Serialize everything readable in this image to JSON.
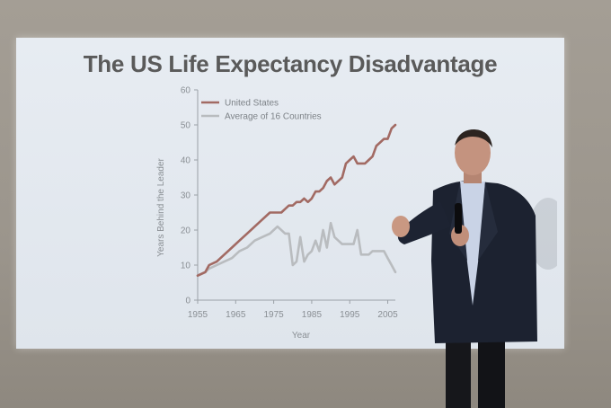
{
  "slide": {
    "title": "The US Life Expectancy Disadvantage"
  },
  "chart_data": {
    "type": "line",
    "title": "The US Life Expectancy Disadvantage",
    "xlabel": "Year",
    "ylabel": "Years Behind the Leader",
    "xlim": [
      1955,
      2007
    ],
    "ylim": [
      0,
      60
    ],
    "xticks": [
      1955,
      1965,
      1975,
      1985,
      1995,
      2005
    ],
    "yticks": [
      0,
      10,
      20,
      30,
      40,
      50,
      60
    ],
    "grid": false,
    "legend_position": "top-left",
    "series": [
      {
        "name": "United States",
        "color": "#a26a63",
        "x": [
          1955,
          1957,
          1958,
          1960,
          1962,
          1964,
          1966,
          1968,
          1970,
          1972,
          1974,
          1975,
          1977,
          1978,
          1979,
          1980,
          1981,
          1982,
          1983,
          1984,
          1985,
          1986,
          1987,
          1988,
          1989,
          1990,
          1991,
          1992,
          1993,
          1994,
          1995,
          1996,
          1997,
          1998,
          1999,
          2000,
          2001,
          2002,
          2003,
          2004,
          2005,
          2006,
          2007
        ],
        "y": [
          7,
          8,
          10,
          11,
          13,
          15,
          17,
          19,
          21,
          23,
          25,
          25,
          25,
          26,
          27,
          27,
          28,
          28,
          29,
          28,
          29,
          31,
          31,
          32,
          34,
          35,
          33,
          34,
          35,
          39,
          40,
          41,
          39,
          39,
          39,
          40,
          41,
          44,
          45,
          46,
          46,
          49,
          50
        ]
      },
      {
        "name": "Average of 16 Countries",
        "color": "#b9bcbf",
        "x": [
          1955,
          1957,
          1958,
          1960,
          1962,
          1964,
          1966,
          1968,
          1970,
          1972,
          1974,
          1975,
          1976,
          1977,
          1978,
          1979,
          1980,
          1981,
          1982,
          1983,
          1984,
          1985,
          1986,
          1987,
          1988,
          1989,
          1990,
          1991,
          1992,
          1993,
          1994,
          1995,
          1996,
          1997,
          1998,
          1999,
          2000,
          2001,
          2002,
          2003,
          2004,
          2005,
          2006,
          2007
        ],
        "y": [
          7,
          8,
          9,
          10,
          11,
          12,
          14,
          15,
          17,
          18,
          19,
          20,
          21,
          20,
          19,
          19,
          10,
          11,
          18,
          11,
          13,
          14,
          17,
          14,
          20,
          15,
          22,
          18,
          17,
          16,
          16,
          16,
          16,
          20,
          13,
          13,
          13,
          14,
          14,
          14,
          14,
          12,
          10,
          8
        ]
      }
    ]
  }
}
